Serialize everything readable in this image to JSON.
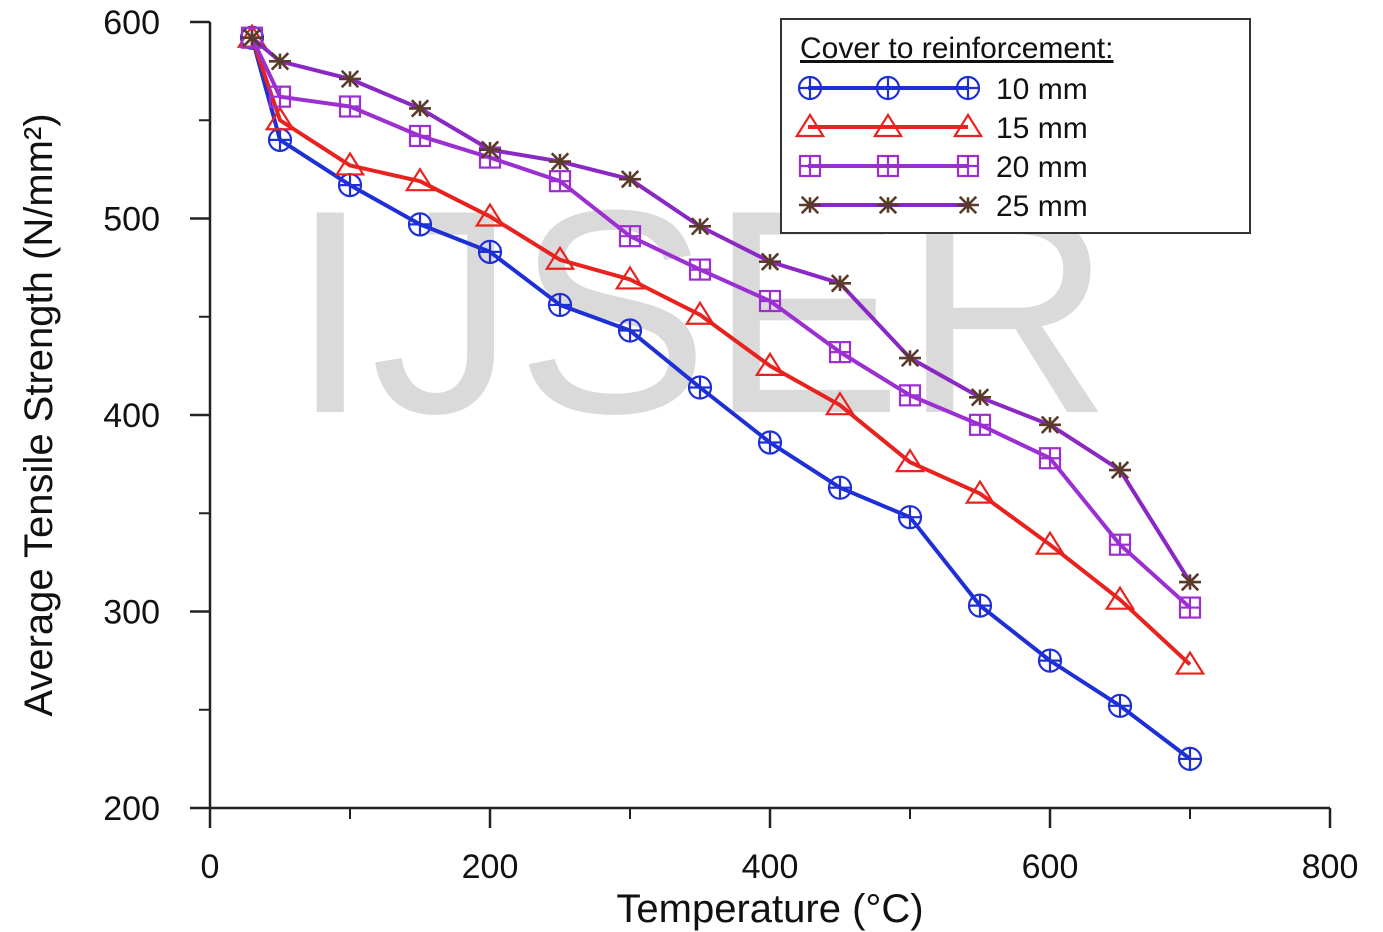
{
  "chart_data": {
    "type": "line",
    "title": "",
    "xlabel": "Temperature (°C)",
    "ylabel": "Average Tensile Strength (N/mm²)",
    "xlim": [
      0,
      800
    ],
    "ylim": [
      200,
      600
    ],
    "x_ticks": [
      0,
      200,
      400,
      600,
      800
    ],
    "y_ticks": [
      200,
      300,
      400,
      500,
      600
    ],
    "grid": false,
    "legend": {
      "title": "Cover to reinforcement:",
      "placement": "top-right"
    },
    "watermark": "IJSER",
    "x": [
      30,
      50,
      100,
      150,
      200,
      250,
      300,
      350,
      400,
      450,
      500,
      550,
      600,
      650,
      700
    ],
    "series": [
      {
        "name": "10 mm",
        "color": "#1f2fd6",
        "marker": "circle-plus",
        "values": [
          592,
          540,
          517,
          497,
          483,
          456,
          443,
          414,
          386,
          363,
          348,
          303,
          275,
          252,
          225
        ]
      },
      {
        "name": "15 mm",
        "color": "#e8231f",
        "marker": "triangle",
        "values": [
          592,
          550,
          527,
          519,
          501,
          479,
          469,
          451,
          425,
          405,
          376,
          360,
          334,
          306,
          273
        ]
      },
      {
        "name": "20 mm",
        "color": "#9b2fd1",
        "marker": "square-grid",
        "values": [
          592,
          562,
          557,
          542,
          531,
          519,
          491,
          474,
          458,
          432,
          410,
          395,
          378,
          334,
          302
        ]
      },
      {
        "name": "25 mm",
        "color": "#8a28c4",
        "marker_color": "#5a3a2a",
        "marker": "asterisk",
        "values": [
          592,
          580,
          571,
          556,
          535,
          529,
          520,
          496,
          478,
          467,
          429,
          409,
          395,
          372,
          315
        ]
      }
    ]
  }
}
